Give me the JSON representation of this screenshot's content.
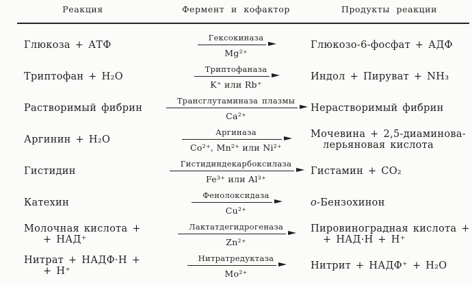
{
  "page": {
    "background": "#fbfbf9",
    "ink": "#1f1f1f"
  },
  "table": {
    "headers": [
      "Реакция",
      "Фермент и кофактор",
      "Продукты реакции"
    ],
    "rows": [
      {
        "reaction": "Глюкоза + АТФ",
        "enzyme": "Гексокиназа",
        "cofactor": "Mg²⁺",
        "products": "Глюкозо-6-фосфат + АДФ"
      },
      {
        "reaction": "Триптофан + H₂O",
        "enzyme": "Триптофаназа",
        "cofactor": "K⁺ или Rb⁺",
        "products": "Индол + Пируват + NH₃"
      },
      {
        "reaction": "Растворимый фибрин",
        "enzyme": "Трансглутаминаза плазмы",
        "cofactor": "Ca²⁺",
        "products": "Нерастворимый фибрин"
      },
      {
        "reaction": "Аргинин + H₂O",
        "enzyme": "Аргиназа",
        "cofactor": "Co²⁺, Mn²⁺ или Ni²⁺",
        "products": "Мочевина + 2,5-диаминова-\nлерьяновая кислота"
      },
      {
        "reaction": "Гистидин",
        "enzyme": "Гистидиндекарбоксилаза",
        "cofactor": "Fe³⁺ или Al³⁺",
        "products": "Гистамин + CO₂"
      },
      {
        "reaction": "Катехин",
        "enzyme": "Фенолоксидаза",
        "cofactor": "Cu²⁺",
        "products_italic": "о",
        "products_rest": "-Бензохинон"
      },
      {
        "reaction": "Молочная кислота +\n+ НАД⁺",
        "enzyme": "Лактатдегидрогеназа",
        "cofactor": "Zn²⁺",
        "products": "Пировиноградная кислота +\n+ НАД·Н + Н⁺"
      },
      {
        "reaction": "Нитрат + НАДФ·Н +\n+ Н⁺",
        "enzyme": "Нитратредуктаза",
        "cofactor": "Mo²⁺",
        "products": "Нитрит + НАДФ⁺ + H₂O"
      }
    ]
  }
}
